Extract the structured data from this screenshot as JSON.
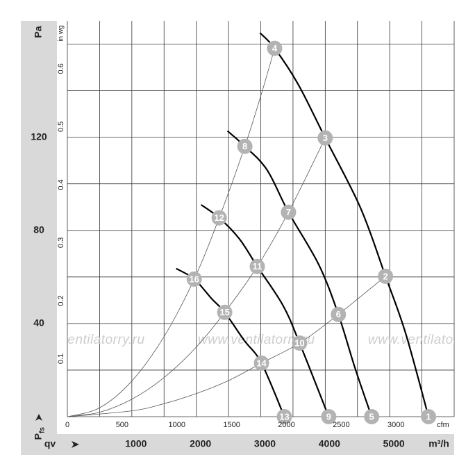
{
  "chart_data": {
    "type": "line",
    "y_label": "Pa",
    "y2_label": "in wg",
    "x_label": "m³/h",
    "x2_label": "cfm",
    "pressure_symbol": "P",
    "pressure_subscript": "fs",
    "flow_symbol": "qv",
    "watermark": "www.ventilatorry.ru",
    "xlim": [
      0,
      6000
    ],
    "xticks": [
      1000,
      2000,
      3000,
      4000,
      5000
    ],
    "x2lim": [
      0,
      3531
    ],
    "x2ticks": [
      0,
      500,
      1000,
      1500,
      2000,
      2500,
      3000
    ],
    "ylim": [
      0,
      170
    ],
    "yticks": [
      40,
      80,
      120
    ],
    "y2lim": [
      0,
      0.6825
    ],
    "y2ticks": [
      0.1,
      0.2,
      0.3,
      0.4,
      0.5,
      0.6
    ],
    "xgrid": [
      0,
      500,
      1000,
      1500,
      2000,
      2500,
      3000,
      3500,
      4000,
      4500,
      5000,
      5500,
      6000
    ],
    "ygrid": [
      0,
      20,
      40,
      60,
      80,
      100,
      120,
      140,
      160
    ],
    "grid": true,
    "series": [
      {
        "kind": "fan",
        "color": "#000000",
        "x": [
          2989,
          3215,
          3581,
          4000,
          4548,
          4935,
          5247,
          5602
        ],
        "values": [
          164.8,
          158.2,
          142.7,
          119.7,
          89.6,
          60.3,
          35.8,
          0
        ],
        "point_labels": [
          null,
          "4",
          null,
          "3",
          null,
          "2",
          null,
          "1"
        ]
      },
      {
        "kind": "fan",
        "color": "#000000",
        "x": [
          2484,
          2753,
          3097,
          3430,
          3903,
          4204,
          4462,
          4720
        ],
        "values": [
          122.7,
          116.1,
          106.0,
          87.8,
          65.1,
          43.9,
          20.9,
          0
        ],
        "point_labels": [
          null,
          "8",
          null,
          "7",
          null,
          "6",
          null,
          "5"
        ]
      },
      {
        "kind": "fan",
        "color": "#000000",
        "x": [
          2075,
          2355,
          2667,
          2946,
          3344,
          3602,
          4054
        ],
        "values": [
          91.0,
          85.4,
          76.4,
          64.5,
          47.8,
          31.6,
          0
        ],
        "point_labels": [
          null,
          "12",
          null,
          "11",
          null,
          "10",
          "9"
        ]
      },
      {
        "kind": "fan",
        "color": "#000000",
        "x": [
          1688,
          1968,
          2237,
          2441,
          2742,
          3011,
          3366
        ],
        "values": [
          63.6,
          59.1,
          50.7,
          44.8,
          32.8,
          23.0,
          0
        ],
        "point_labels": [
          null,
          "16",
          null,
          "15",
          null,
          "14",
          "13"
        ]
      },
      {
        "kind": "system",
        "color": "#555555",
        "x": [
          0,
          500,
          1000,
          1500,
          1968,
          2355,
          2753,
          3000,
          3215
        ],
        "values": [
          0,
          3.8,
          15.3,
          34.4,
          59.1,
          85.4,
          116.1,
          137.7,
          158.2
        ]
      },
      {
        "kind": "system",
        "color": "#555555",
        "x": [
          0,
          500,
          1000,
          1500,
          2000,
          2441,
          2946,
          3430,
          4000
        ],
        "values": [
          0,
          1.9,
          7.5,
          16.8,
          29.9,
          44.8,
          64.5,
          87.8,
          119.7
        ]
      },
      {
        "kind": "system",
        "color": "#555555",
        "x": [
          0,
          1000,
          1500,
          2000,
          2500,
          3011,
          3602,
          4204,
          4935
        ],
        "values": [
          0,
          2.5,
          5.6,
          9.9,
          15.5,
          23.0,
          31.6,
          43.9,
          60.3
        ]
      }
    ]
  }
}
